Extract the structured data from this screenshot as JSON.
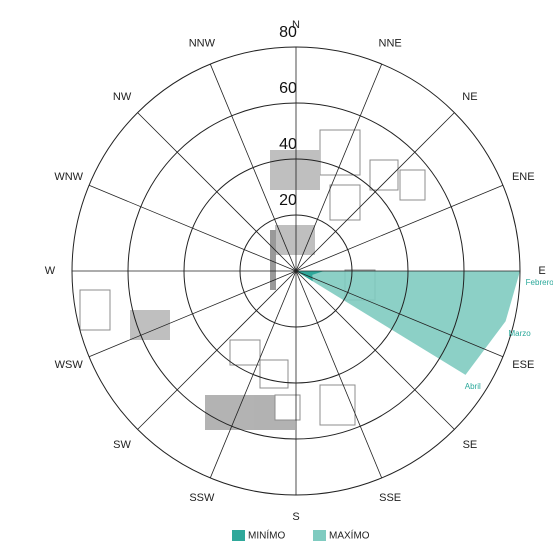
{
  "chart_data": {
    "type": "polar-area",
    "directions": [
      "N",
      "NNE",
      "NE",
      "ENE",
      "E",
      "ESE",
      "SE",
      "SSE",
      "S",
      "SSW",
      "SW",
      "WSW",
      "W",
      "WNW",
      "NW",
      "NNW"
    ],
    "categories": [
      "Febrero",
      "Marzo",
      "Abril"
    ],
    "x": [
      90,
      103.5,
      121.5
    ],
    "series": [
      {
        "name": "MINÍMO",
        "color": "#2fa89a",
        "values": [
          10,
          6,
          7
        ]
      },
      {
        "name": "MAXÍMO",
        "color": "#7fcbc0",
        "values": [
          80,
          77,
          71
        ]
      }
    ],
    "ylim": [
      0,
      80
    ],
    "yticks": [
      20,
      40,
      60,
      80
    ]
  }
}
